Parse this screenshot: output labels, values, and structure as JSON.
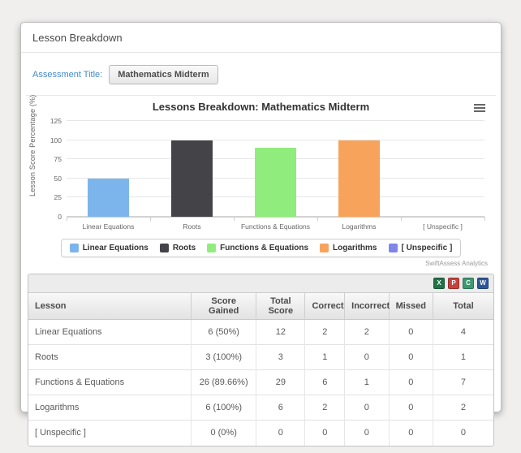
{
  "page": {
    "title": "Lesson Breakdown"
  },
  "assessment": {
    "label": "Assessment Title:",
    "value": "Mathematics Midterm"
  },
  "chart_data": {
    "type": "bar",
    "title": "Lessons Breakdown: Mathematics Midterm",
    "xlabel": "",
    "ylabel": "Lesson Score Percentage (%)",
    "categories": [
      "Linear Equations",
      "Roots",
      "Functions & Equations",
      "Logarithms",
      "[ Unspecific ]"
    ],
    "values": [
      50,
      100,
      89.66,
      100,
      0
    ],
    "colors": [
      "#7cb5ec",
      "#434348",
      "#90ed7d",
      "#f7a35c",
      "#8085e9"
    ],
    "ylim": [
      0,
      125
    ],
    "yticks": [
      0,
      25,
      50,
      75,
      100,
      125
    ],
    "grid": true,
    "legend_position": "bottom",
    "legend": [
      "Linear Equations",
      "Roots",
      "Functions & Equations",
      "Logarithms",
      "[ Unspecific ]"
    ],
    "credit": "SwiftAssess Analytics"
  },
  "table": {
    "columns": [
      "Lesson",
      "Score Gained",
      "Total Score",
      "Correct",
      "Incorrect",
      "Missed",
      "Total"
    ],
    "rows": [
      [
        "Linear Equations",
        "6 (50%)",
        "12",
        "2",
        "2",
        "0",
        "4"
      ],
      [
        "Roots",
        "3 (100%)",
        "3",
        "1",
        "0",
        "0",
        "1"
      ],
      [
        "Functions & Equations",
        "26 (89.66%)",
        "29",
        "6",
        "1",
        "0",
        "7"
      ],
      [
        "Logarithms",
        "6 (100%)",
        "6",
        "2",
        "0",
        "0",
        "2"
      ],
      [
        "[ Unspecific ]",
        "0 (0%)",
        "0",
        "0",
        "0",
        "0",
        "0"
      ]
    ],
    "export_icons": [
      {
        "name": "excel",
        "glyph": "X",
        "color": "#217346"
      },
      {
        "name": "pdf",
        "glyph": "P",
        "color": "#c9413b"
      },
      {
        "name": "csv",
        "glyph": "C",
        "color": "#3d9970"
      },
      {
        "name": "word",
        "glyph": "W",
        "color": "#2b579a"
      }
    ]
  }
}
